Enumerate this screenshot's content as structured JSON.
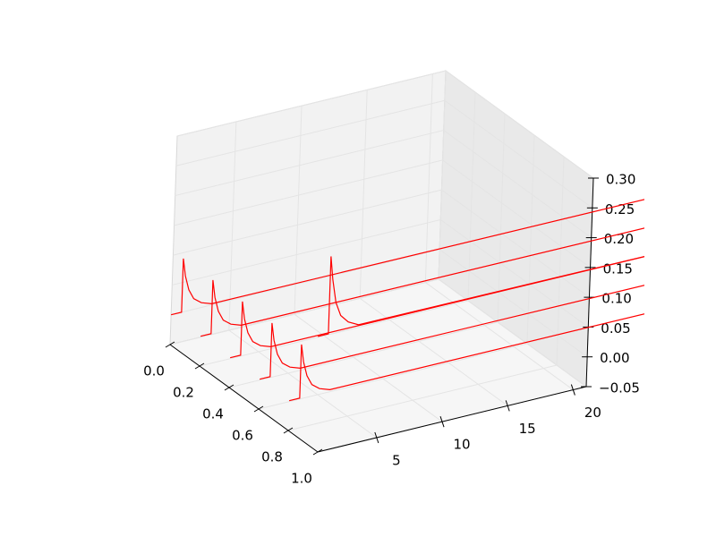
{
  "chart_data": {
    "type": "line3d",
    "color": "#ff0000",
    "grid": true,
    "xlim": [
      0,
      1
    ],
    "ylim": [
      0.5,
      21
    ],
    "zlim": [
      -0.05,
      0.3
    ],
    "xticks": [
      {
        "value": 0,
        "label": "0.0"
      },
      0.2,
      0.4,
      0.6,
      0.8,
      {
        "value": 1,
        "label": "1.0"
      }
    ],
    "yticks": [
      5,
      10,
      15,
      20
    ],
    "zticks": [
      {
        "value": -0.05,
        "label": "−0.05"
      },
      {
        "value": 0,
        "label": "0.00"
      },
      0.05,
      {
        "value": 0.1,
        "label": "0.10"
      },
      0.15,
      {
        "value": 0.2,
        "label": "0.20"
      },
      0.25,
      {
        "value": 0.3,
        "label": "0.30"
      }
    ],
    "series": [
      {
        "x": 0,
        "t": [
          0.5,
          1.3,
          1.3,
          1.5,
          1.8,
          2.2,
          2.8,
          3.6,
          40
        ],
        "values": [
          0,
          0,
          0.09,
          0.06,
          0.035,
          0.018,
          0.008,
          0.002,
          0
        ]
      },
      {
        "x": 0.2,
        "t": [
          0.5,
          1.3,
          1.3,
          1.5,
          1.8,
          2.2,
          2.8,
          3.6,
          40
        ],
        "values": [
          0,
          0,
          0.09,
          0.06,
          0.035,
          0.018,
          0.008,
          0.002,
          0
        ]
      },
      {
        "x": 0.4,
        "t": [
          0.5,
          1.3,
          1.3,
          1.5,
          1.8,
          2.2,
          2.8,
          3.6,
          40
        ],
        "values": [
          0,
          0,
          0.09,
          0.06,
          0.035,
          0.018,
          0.008,
          0.002,
          0
        ]
      },
      {
        "x": 0.6,
        "t": [
          0.5,
          1.3,
          1.3,
          1.5,
          1.8,
          2.2,
          2.8,
          3.6,
          40
        ],
        "values": [
          0,
          0,
          0.09,
          0.06,
          0.035,
          0.018,
          0.008,
          0.002,
          0
        ]
      },
      {
        "x": 0.8,
        "t": [
          0.5,
          1.3,
          1.3,
          1.5,
          1.8,
          2.2,
          2.8,
          3.6,
          40
        ],
        "values": [
          0,
          0,
          0.09,
          0.06,
          0.035,
          0.018,
          0.008,
          0.002,
          0
        ]
      },
      {
        "x": 0.4,
        "t": [
          7.2,
          8,
          8,
          8.2,
          8.5,
          8.9,
          9.5,
          10.3,
          40
        ],
        "values": [
          0,
          0,
          0.13,
          0.09,
          0.05,
          0.026,
          0.012,
          0.003,
          0
        ]
      }
    ]
  }
}
